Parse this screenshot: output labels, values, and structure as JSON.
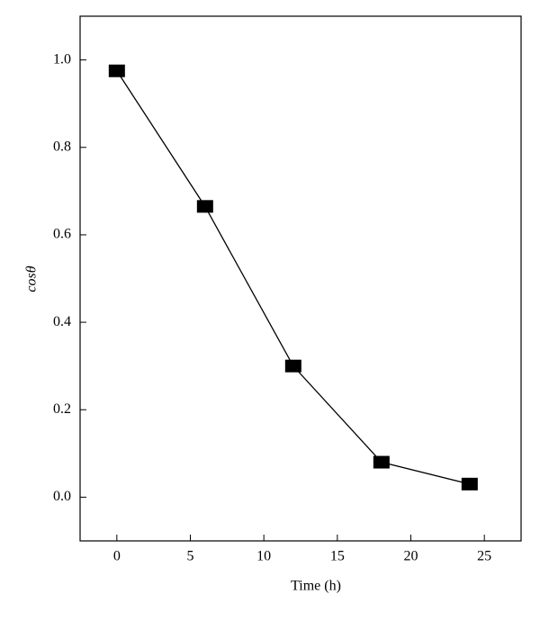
{
  "chart_data": {
    "type": "line",
    "x_label": "Time (h)",
    "y_label": "cosθ",
    "x": [
      0,
      6,
      12,
      18,
      24
    ],
    "series": [
      {
        "color": "#000000",
        "values": [
          0.975,
          0.665,
          0.3,
          0.08,
          0.03
        ]
      }
    ],
    "xlim": [
      -2.5,
      27.5
    ],
    "xticks": [
      0,
      5,
      10,
      15,
      20,
      25
    ],
    "ylim": [
      -0.1,
      1.1
    ],
    "yticks": [
      {
        "value": 0,
        "label": "0.0"
      },
      0.2,
      0.4,
      0.6,
      0.8,
      {
        "value": 1,
        "label": "1.0"
      }
    ],
    "grid": false
  }
}
